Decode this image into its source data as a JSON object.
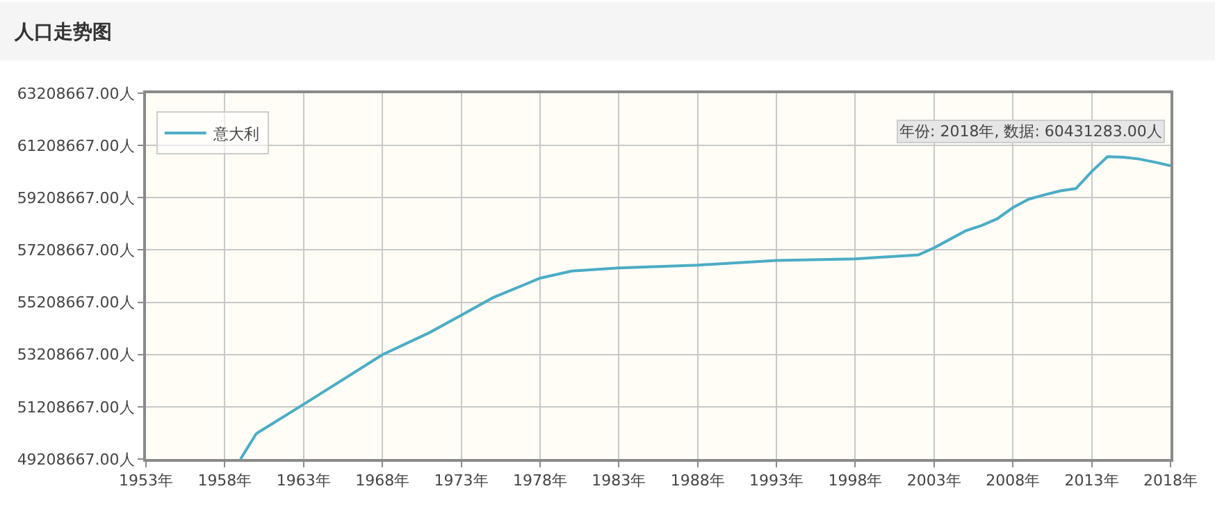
{
  "chart_data": {
    "type": "line",
    "title": "人口走势图",
    "x": [
      1959,
      1960,
      1963,
      1968,
      1971,
      1973,
      1975,
      1978,
      1980,
      1983,
      1988,
      1993,
      1998,
      2002,
      2003,
      2005,
      2006,
      2007,
      2008,
      2009,
      2010,
      2011,
      2012,
      2013,
      2014,
      2015,
      2016,
      2017,
      2018
    ],
    "series": [
      {
        "name": "意大利",
        "color": "#4bacc6",
        "values": [
          49210000,
          50180000,
          51300000,
          53200000,
          54050000,
          54710000,
          55380000,
          56130000,
          56400000,
          56520000,
          56630000,
          56810000,
          56870000,
          57020000,
          57290000,
          57940000,
          58140000,
          58400000,
          58830000,
          59150000,
          59320000,
          59470000,
          59560000,
          60210000,
          60780000,
          60760000,
          60690000,
          60570000,
          60431283
        ]
      }
    ],
    "xlim": [
      1953,
      2018
    ],
    "xticks": [
      {
        "value": 1953,
        "label": "1953年"
      },
      {
        "value": 1958,
        "label": "1958年"
      },
      {
        "value": 1963,
        "label": "1963年"
      },
      {
        "value": 1968,
        "label": "1968年"
      },
      {
        "value": 1973,
        "label": "1973年"
      },
      {
        "value": 1978,
        "label": "1978年"
      },
      {
        "value": 1983,
        "label": "1983年"
      },
      {
        "value": 1988,
        "label": "1988年"
      },
      {
        "value": 1993,
        "label": "1993年"
      },
      {
        "value": 1998,
        "label": "1998年"
      },
      {
        "value": 2003,
        "label": "2003年"
      },
      {
        "value": 2008,
        "label": "2008年"
      },
      {
        "value": 2013,
        "label": "2013年"
      },
      {
        "value": 2018,
        "label": "2018年"
      }
    ],
    "ylim": [
      49208667,
      63208667
    ],
    "yticks": [
      {
        "value": 49208667,
        "label": "49208667.00人"
      },
      {
        "value": 51208667,
        "label": "51208667.00人"
      },
      {
        "value": 53208667,
        "label": "53208667.00人"
      },
      {
        "value": 55208667,
        "label": "55208667.00人"
      },
      {
        "value": 57208667,
        "label": "57208667.00人"
      },
      {
        "value": 59208667,
        "label": "59208667.00人"
      },
      {
        "value": 61208667,
        "label": "61208667.00人"
      },
      {
        "value": 63208667,
        "label": "63208667.00人"
      }
    ],
    "annotations": [
      {
        "text": "年份: 2018年, 数据: 60431283.00人",
        "x": 2018,
        "y": 60431283
      }
    ],
    "grid": true,
    "legend": "top left",
    "marker": "none",
    "line_style": "solid"
  }
}
